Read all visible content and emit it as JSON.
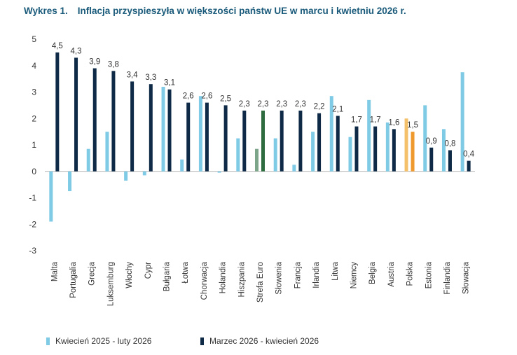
{
  "title": {
    "number": "Wykres 1.",
    "text": "Inflacja przyspieszyła w większości państw UE w marcu i kwietniu 2026 r."
  },
  "colors": {
    "s1": "#7fcbe6",
    "s2": "#0e2a47",
    "euro_s1": "#7da58a",
    "euro_s2": "#2e6b3e",
    "pl_s1": "#f4c16a",
    "pl_s2": "#ee9a2e",
    "text": "#333333",
    "axis": "#999999"
  },
  "chart_data": {
    "type": "bar",
    "title": "Inflacja przyspieszyła w większości państw UE w marcu i kwietniu 2026 r.",
    "categories": [
      "Malta",
      "Portugalia",
      "Grecja",
      "Luksemburg",
      "Włochy",
      "Cypr",
      "Bułgaria",
      "Łotwa",
      "Chorwacja",
      "Holandia",
      "Hiszpania",
      "Strefa Euro",
      "Słowenia",
      "Francja",
      "Irlandia",
      "Litwa",
      "Niemcy",
      "Belgia",
      "Austria",
      "Polska",
      "Estonia",
      "Finlandia",
      "Słowacja"
    ],
    "series": [
      {
        "name": "Kwiecień 2025 - luty 2026",
        "values": [
          -1.9,
          -0.75,
          0.85,
          1.5,
          -0.35,
          -0.15,
          3.2,
          0.45,
          2.85,
          -0.05,
          1.25,
          0.85,
          1.25,
          0.25,
          1.5,
          2.85,
          1.3,
          2.7,
          1.85,
          2.0,
          2.5,
          1.6,
          3.75
        ]
      },
      {
        "name": "Marzec 2026 - kwiecień 2026",
        "values": [
          4.5,
          4.3,
          3.9,
          3.8,
          3.4,
          3.3,
          3.1,
          2.6,
          2.6,
          2.5,
          2.3,
          2.3,
          2.3,
          2.3,
          2.2,
          2.1,
          1.7,
          1.7,
          1.6,
          1.5,
          0.9,
          0.8,
          0.4
        ]
      }
    ],
    "data_labels": [
      "4,5",
      "4,3",
      "3,9",
      "3,8",
      "3,4",
      "3,3",
      "3,1",
      "2,6",
      "2,6",
      "2,5",
      "2,3",
      "2,3",
      "2,3",
      "2,3",
      "2,2",
      "2,1",
      "1,7",
      "1,7",
      "1,6",
      "1,5",
      "0,9",
      "0,8",
      "0,4"
    ],
    "yticks": [
      5,
      4,
      3,
      2,
      1,
      0,
      -1,
      -2,
      -3
    ],
    "ylim": [
      -3,
      5
    ],
    "grid": false,
    "legend": "bottom"
  }
}
